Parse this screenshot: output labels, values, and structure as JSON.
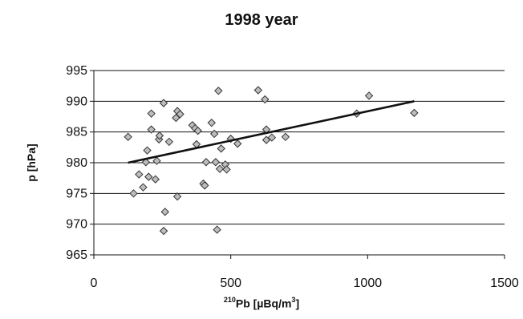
{
  "chart_data": {
    "type": "scatter",
    "title": "1998 year",
    "xlabel": {
      "sup": "210",
      "main": "Pb [µBq/m",
      "unit_sup": "3",
      "close": "]"
    },
    "ylabel": "p [hPa]",
    "xlim": [
      0,
      1500
    ],
    "ylim": [
      965,
      995
    ],
    "xticks": [
      "0",
      "500",
      "1000",
      "1500"
    ],
    "yticks": [
      "965",
      "970",
      "975",
      "980",
      "985",
      "990",
      "995"
    ],
    "grid": "horizontal",
    "marker": "diamond",
    "marker_color": "#bdbdbd",
    "trendline": {
      "x": [
        125,
        1170
      ],
      "y": [
        980.0,
        990.0
      ],
      "color": "#111111"
    },
    "points": [
      {
        "x": 125,
        "y": 984.2
      },
      {
        "x": 145,
        "y": 975.0
      },
      {
        "x": 165,
        "y": 978.1
      },
      {
        "x": 180,
        "y": 976.0
      },
      {
        "x": 190,
        "y": 980.1
      },
      {
        "x": 195,
        "y": 982.0
      },
      {
        "x": 200,
        "y": 977.7
      },
      {
        "x": 210,
        "y": 985.4
      },
      {
        "x": 210,
        "y": 988.0
      },
      {
        "x": 225,
        "y": 977.3
      },
      {
        "x": 230,
        "y": 980.3
      },
      {
        "x": 238,
        "y": 983.8
      },
      {
        "x": 240,
        "y": 984.4
      },
      {
        "x": 255,
        "y": 989.7
      },
      {
        "x": 260,
        "y": 972.0
      },
      {
        "x": 255,
        "y": 968.9
      },
      {
        "x": 275,
        "y": 983.4
      },
      {
        "x": 300,
        "y": 987.3
      },
      {
        "x": 305,
        "y": 988.4
      },
      {
        "x": 305,
        "y": 974.5
      },
      {
        "x": 315,
        "y": 987.9
      },
      {
        "x": 360,
        "y": 986.1
      },
      {
        "x": 370,
        "y": 985.6
      },
      {
        "x": 375,
        "y": 983.0
      },
      {
        "x": 380,
        "y": 985.2
      },
      {
        "x": 400,
        "y": 976.6
      },
      {
        "x": 405,
        "y": 976.3
      },
      {
        "x": 410,
        "y": 980.1
      },
      {
        "x": 430,
        "y": 986.5
      },
      {
        "x": 440,
        "y": 984.7
      },
      {
        "x": 445,
        "y": 980.1
      },
      {
        "x": 450,
        "y": 969.1
      },
      {
        "x": 455,
        "y": 991.7
      },
      {
        "x": 460,
        "y": 979.0
      },
      {
        "x": 465,
        "y": 982.3
      },
      {
        "x": 480,
        "y": 979.7
      },
      {
        "x": 485,
        "y": 978.9
      },
      {
        "x": 500,
        "y": 983.9
      },
      {
        "x": 525,
        "y": 983.1
      },
      {
        "x": 600,
        "y": 991.8
      },
      {
        "x": 625,
        "y": 990.3
      },
      {
        "x": 630,
        "y": 985.4
      },
      {
        "x": 630,
        "y": 983.7
      },
      {
        "x": 650,
        "y": 984.1
      },
      {
        "x": 700,
        "y": 984.2
      },
      {
        "x": 960,
        "y": 988.0
      },
      {
        "x": 1005,
        "y": 990.9
      },
      {
        "x": 1170,
        "y": 988.1
      }
    ]
  }
}
